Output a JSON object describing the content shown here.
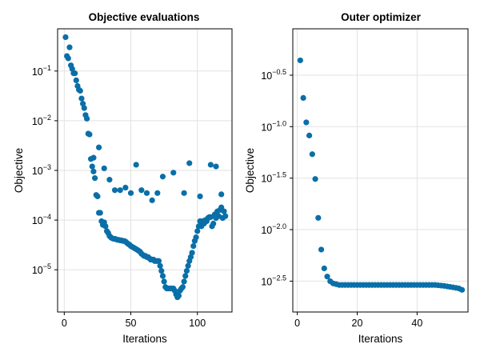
{
  "chart_data": [
    {
      "type": "scatter",
      "title": "Objective evaluations",
      "xlabel": "Iterations",
      "ylabel": "Objective",
      "yscale": "log10",
      "xlim": [
        -5,
        126
      ],
      "ylim_log10": [
        -5.85,
        -0.15
      ],
      "xticks": [
        0,
        50,
        100
      ],
      "yticks": [
        {
          "base": "10",
          "exp": "−1",
          "value": 0.1
        },
        {
          "base": "10",
          "exp": "−2",
          "value": 0.01
        },
        {
          "base": "10",
          "exp": "−3",
          "value": 0.001
        },
        {
          "base": "10",
          "exp": "−4",
          "value": 0.0001
        },
        {
          "base": "10",
          "exp": "−5",
          "value": 1e-05
        }
      ],
      "grid": true,
      "color": "#0a6fa8",
      "x": [
        1,
        2,
        3,
        4,
        5,
        6,
        7,
        8,
        9,
        10,
        11,
        12,
        13,
        14,
        15,
        16,
        17,
        18,
        19,
        20,
        21,
        22,
        23,
        24,
        25,
        26,
        27,
        28,
        29,
        30,
        31,
        32,
        33,
        34,
        35,
        36,
        37,
        38,
        39,
        40,
        41,
        42,
        43,
        44,
        45,
        46,
        47,
        48,
        49,
        50,
        51,
        52,
        53,
        54,
        55,
        56,
        57,
        58,
        59,
        60,
        61,
        62,
        63,
        64,
        65,
        66,
        67,
        68,
        69,
        70,
        71,
        72,
        73,
        74,
        75,
        76,
        77,
        78,
        79,
        80,
        81,
        82,
        83,
        84,
        85,
        86,
        87,
        88,
        89,
        90,
        91,
        92,
        93,
        94,
        95,
        96,
        97,
        98,
        99,
        100,
        101,
        102,
        103,
        104,
        105,
        106,
        107,
        108,
        109,
        110,
        111,
        112,
        113,
        114,
        115,
        116,
        117,
        118,
        119,
        120,
        121,
        22,
        26,
        30,
        34,
        38,
        42,
        46,
        50,
        54,
        58,
        62,
        66,
        70,
        74,
        82,
        90,
        94,
        102,
        110,
        114,
        118
      ],
      "y": [
        0.48,
        0.2,
        0.18,
        0.3,
        0.13,
        0.11,
        0.09,
        0.09,
        0.065,
        0.05,
        0.042,
        0.04,
        0.028,
        0.022,
        0.018,
        0.013,
        0.011,
        0.0055,
        0.0053,
        0.0017,
        0.0012,
        0.00095,
        0.0007,
        0.00032,
        0.0003,
        0.00014,
        0.00014,
        9.5e-05,
        8e-05,
        9e-05,
        7.5e-05,
        6e-05,
        5.5e-05,
        4.8e-05,
        4.5e-05,
        4.3e-05,
        4.2e-05,
        4.2e-05,
        4.1e-05,
        4e-05,
        4e-05,
        3.9e-05,
        3.9e-05,
        3.8e-05,
        3.8e-05,
        3.7e-05,
        3.5e-05,
        3.3e-05,
        3.2e-05,
        3e-05,
        2.9e-05,
        2.8e-05,
        2.7e-05,
        2.6e-05,
        2.5e-05,
        2.4e-05,
        2.3e-05,
        2.1e-05,
        2e-05,
        1.9e-05,
        1.9e-05,
        1.8e-05,
        1.8e-05,
        1.7e-05,
        1.6e-05,
        1.6e-05,
        1.6e-05,
        1.5e-05,
        1.5e-05,
        1.5e-05,
        1.5e-05,
        1.2e-05,
        9.5e-06,
        7.5e-06,
        5.8e-06,
        4.5e-06,
        4.2e-06,
        4.2e-06,
        4.2e-06,
        4.2e-06,
        4.2e-06,
        4.2e-06,
        3.8e-06,
        3.2e-06,
        2.8e-06,
        3e-06,
        3.8e-06,
        4.2e-06,
        4.5e-06,
        5.8e-06,
        7.5e-06,
        9.5e-06,
        1.2e-05,
        1.5e-05,
        1.8e-05,
        2.2e-05,
        3e-05,
        3.8e-05,
        4.5e-05,
        6e-05,
        7.5e-05,
        9.5e-05,
        7.5e-05,
        9.5e-05,
        8.5e-05,
        0.0001,
        9.5e-05,
        0.00011,
        0.000115,
        0.000115,
        7.5e-05,
        8.5e-05,
        0.00013,
        0.00011,
        0.00015,
        0.00012,
        0.00016,
        0.00018,
        0.00011,
        0.00015,
        0.00012,
        0.0018,
        0.0029,
        0.0011,
        0.00065,
        0.0004,
        0.0004,
        0.00045,
        0.00035,
        0.0013,
        0.0004,
        0.00035,
        0.00025,
        0.00035,
        0.00075,
        0.0009,
        0.00035,
        0.0014,
        0.0003,
        0.0013,
        0.0012,
        0.00033
      ],
      "marker": "circle"
    },
    {
      "type": "scatter",
      "title": "Outer optimizer",
      "xlabel": "Iterations",
      "ylabel": "Objective",
      "yscale": "log10",
      "xlim": [
        -1.5,
        57
      ],
      "ylim_log10": [
        -2.8,
        -0.05
      ],
      "xticks": [
        0,
        20,
        40
      ],
      "yticks": [
        {
          "base": "10",
          "exp": "−0.5",
          "value": 0.316
        },
        {
          "base": "10",
          "exp": "−1.0",
          "value": 0.1
        },
        {
          "base": "10",
          "exp": "−1.5",
          "value": 0.0316
        },
        {
          "base": "10",
          "exp": "−2.0",
          "value": 0.01
        },
        {
          "base": "10",
          "exp": "−2.5",
          "value": 0.00316
        }
      ],
      "grid": true,
      "color": "#0a6fa8",
      "x": [
        1,
        2,
        3,
        4,
        5,
        6,
        7,
        8,
        9,
        10,
        11,
        12,
        13,
        14,
        15,
        16,
        17,
        18,
        19,
        20,
        21,
        22,
        23,
        24,
        25,
        26,
        27,
        28,
        29,
        30,
        31,
        32,
        33,
        34,
        35,
        36,
        37,
        38,
        39,
        40,
        41,
        42,
        43,
        44,
        45,
        46,
        47,
        48,
        49,
        50,
        51,
        52,
        53,
        54,
        55
      ],
      "y": [
        0.44,
        0.19,
        0.11,
        0.082,
        0.054,
        0.031,
        0.013,
        0.0064,
        0.0042,
        0.0035,
        0.00315,
        0.003,
        0.00295,
        0.0029,
        0.0029,
        0.0029,
        0.0029,
        0.0029,
        0.0029,
        0.0029,
        0.0029,
        0.0029,
        0.0029,
        0.0029,
        0.0029,
        0.0029,
        0.0029,
        0.0029,
        0.0029,
        0.0029,
        0.0029,
        0.0029,
        0.0029,
        0.0029,
        0.0029,
        0.0029,
        0.0029,
        0.0029,
        0.0029,
        0.0029,
        0.0029,
        0.0029,
        0.0029,
        0.0029,
        0.0029,
        0.0029,
        0.00288,
        0.00286,
        0.00284,
        0.00281,
        0.00278,
        0.00275,
        0.00272,
        0.00268,
        0.0026
      ],
      "marker": "circle"
    }
  ]
}
